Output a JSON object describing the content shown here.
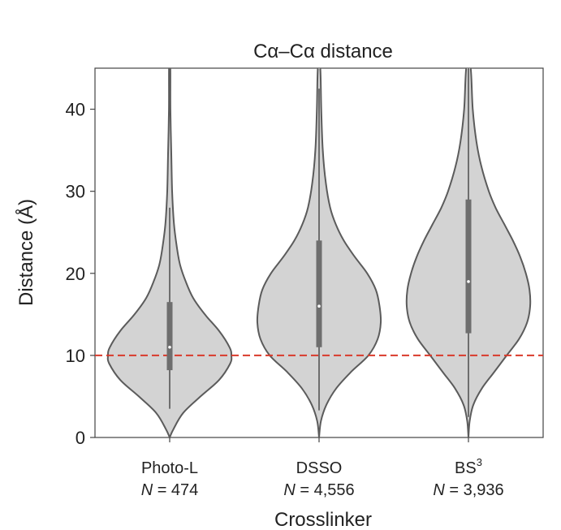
{
  "chart_data": {
    "type": "violin",
    "title": "Cα–Cα distance",
    "xlabel": "Crosslinker",
    "ylabel": "Distance (Å)",
    "ylim": [
      0,
      45
    ],
    "yticks": [
      "0",
      "10",
      "20",
      "30",
      "40"
    ],
    "reference_line": {
      "y": 10,
      "color": "#d93a2b",
      "style": "dashed"
    },
    "colors": {
      "violin_fill": "#d3d3d3",
      "violin_edge": "#5b5b5b",
      "box": "#6e6e6e"
    },
    "categories": [
      {
        "name": "Photo-L",
        "n_prefix": "N",
        "n_text": " = 474",
        "median": 11,
        "q1": 8.2,
        "q3": 16.5,
        "whisker_low": 3.5,
        "whisker_high": 28,
        "profile": [
          [
            0,
            0.0
          ],
          [
            1,
            0.06
          ],
          [
            3,
            0.22
          ],
          [
            5,
            0.5
          ],
          [
            7,
            0.8
          ],
          [
            9,
            0.98
          ],
          [
            10,
            1.0
          ],
          [
            11,
            0.97
          ],
          [
            13,
            0.8
          ],
          [
            15,
            0.57
          ],
          [
            17,
            0.38
          ],
          [
            19,
            0.26
          ],
          [
            21,
            0.17
          ],
          [
            23,
            0.12
          ],
          [
            26,
            0.07
          ],
          [
            30,
            0.04
          ],
          [
            35,
            0.025
          ],
          [
            40,
            0.012
          ],
          [
            45,
            0.01
          ]
        ]
      },
      {
        "name": "DSSO",
        "n_prefix": "N",
        "n_text": " = 4,556",
        "median": 16,
        "q1": 11,
        "q3": 24,
        "whisker_low": 3.3,
        "whisker_high": 42.5,
        "profile": [
          [
            0,
            0.0
          ],
          [
            2,
            0.03
          ],
          [
            4,
            0.12
          ],
          [
            6,
            0.28
          ],
          [
            8,
            0.52
          ],
          [
            10,
            0.8
          ],
          [
            12,
            0.95
          ],
          [
            14,
            1.0
          ],
          [
            16,
            0.98
          ],
          [
            18,
            0.92
          ],
          [
            20,
            0.78
          ],
          [
            22,
            0.58
          ],
          [
            24,
            0.4
          ],
          [
            26,
            0.27
          ],
          [
            28,
            0.18
          ],
          [
            31,
            0.11
          ],
          [
            35,
            0.06
          ],
          [
            40,
            0.035
          ],
          [
            45,
            0.02
          ]
        ]
      },
      {
        "name": "BS",
        "name_sup": "3",
        "n_prefix": "N",
        "n_text": " = 3,936",
        "median": 19,
        "q1": 12.7,
        "q3": 29,
        "whisker_low": 2.5,
        "whisker_high": 45,
        "profile": [
          [
            0,
            0.0
          ],
          [
            2,
            0.02
          ],
          [
            4,
            0.08
          ],
          [
            6,
            0.22
          ],
          [
            8,
            0.42
          ],
          [
            10,
            0.62
          ],
          [
            12,
            0.82
          ],
          [
            14,
            0.95
          ],
          [
            16,
            1.0
          ],
          [
            18,
            0.99
          ],
          [
            20,
            0.93
          ],
          [
            22,
            0.84
          ],
          [
            24,
            0.72
          ],
          [
            26,
            0.58
          ],
          [
            28,
            0.44
          ],
          [
            30,
            0.33
          ],
          [
            33,
            0.21
          ],
          [
            36,
            0.13
          ],
          [
            40,
            0.07
          ],
          [
            45,
            0.035
          ]
        ]
      }
    ]
  }
}
